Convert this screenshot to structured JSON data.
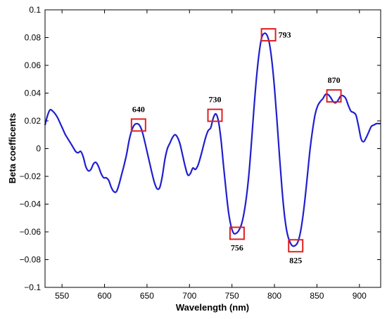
{
  "chart_data": {
    "type": "line",
    "title": "",
    "xlabel": "Wavelength (nm)",
    "ylabel": "Beta coefficents",
    "xlim": [
      530,
      925
    ],
    "ylim": [
      -0.1,
      0.1
    ],
    "xticks": [
      "550",
      "600",
      "650",
      "700",
      "750",
      "800",
      "850",
      "900"
    ],
    "yticks": [
      "0.1",
      "0.08",
      "0.06",
      "0.04",
      "0.02",
      "0",
      "−0.02",
      "−0.04",
      "−0.06",
      "−0.08",
      "−0.1"
    ],
    "grid": false,
    "line_color": "#1f1fcf",
    "marker_color": "#e02020",
    "series": [
      {
        "x": [
          530,
          533,
          536,
          539,
          542,
          545,
          548,
          551,
          554,
          557,
          560,
          563,
          566,
          569,
          572,
          575,
          578,
          581,
          584,
          587,
          590,
          593,
          596,
          599,
          602,
          605,
          608,
          611,
          614,
          617,
          620,
          623,
          626,
          629,
          632,
          635,
          638,
          641,
          644,
          647,
          650,
          653,
          656,
          659,
          662,
          665,
          668,
          671,
          674,
          677,
          680,
          683,
          686,
          689,
          692,
          695,
          698,
          701,
          704,
          707,
          710,
          713,
          716,
          719,
          722,
          725,
          728,
          731,
          734,
          737,
          740,
          743,
          746,
          749,
          752,
          755,
          758,
          761,
          764,
          767,
          770,
          773,
          776,
          779,
          782,
          785,
          788,
          791,
          794,
          797,
          800,
          803,
          806,
          809,
          812,
          815,
          818,
          821,
          824,
          827,
          830,
          833,
          836,
          839,
          842,
          845,
          848,
          851,
          854,
          857,
          860,
          863,
          866,
          869,
          872,
          875,
          878,
          881,
          884,
          887,
          890,
          893,
          896,
          899,
          902,
          905,
          908,
          911,
          914,
          917,
          920,
          923,
          925
        ],
        "y": [
          0.017,
          0.024,
          0.028,
          0.027,
          0.025,
          0.022,
          0.018,
          0.014,
          0.01,
          0.007,
          0.004,
          0.001,
          -0.002,
          -0.003,
          -0.002,
          -0.006,
          -0.013,
          -0.016,
          -0.015,
          -0.011,
          -0.01,
          -0.013,
          -0.018,
          -0.021,
          -0.021,
          -0.023,
          -0.028,
          -0.031,
          -0.031,
          -0.026,
          -0.019,
          -0.012,
          -0.004,
          0.006,
          0.013,
          0.017,
          0.018,
          0.017,
          0.013,
          0.006,
          -0.002,
          -0.01,
          -0.018,
          -0.025,
          -0.029,
          -0.028,
          -0.02,
          -0.008,
          0.0,
          0.004,
          0.008,
          0.01,
          0.008,
          0.003,
          -0.005,
          -0.013,
          -0.019,
          -0.018,
          -0.014,
          -0.015,
          -0.012,
          -0.006,
          0.001,
          0.008,
          0.013,
          0.015,
          0.022,
          0.025,
          0.02,
          0.007,
          -0.012,
          -0.03,
          -0.046,
          -0.056,
          -0.061,
          -0.061,
          -0.059,
          -0.055,
          -0.047,
          -0.035,
          -0.018,
          0.005,
          0.03,
          0.052,
          0.069,
          0.08,
          0.083,
          0.082,
          0.076,
          0.063,
          0.044,
          0.02,
          -0.006,
          -0.03,
          -0.049,
          -0.061,
          -0.067,
          -0.07,
          -0.07,
          -0.068,
          -0.062,
          -0.051,
          -0.036,
          -0.018,
          0.0,
          0.014,
          0.025,
          0.031,
          0.034,
          0.036,
          0.039,
          0.039,
          0.037,
          0.034,
          0.033,
          0.035,
          0.038,
          0.038,
          0.036,
          0.031,
          0.027,
          0.026,
          0.024,
          0.016,
          0.007,
          0.005,
          0.008,
          0.012,
          0.016,
          0.017,
          0.018,
          0.018,
          0.018
        ]
      }
    ],
    "annotations": [
      {
        "label": "640",
        "x": 640,
        "y": 0.017,
        "label_pos": "above"
      },
      {
        "label": "730",
        "x": 730,
        "y": 0.024,
        "label_pos": "above"
      },
      {
        "label": "756",
        "x": 756,
        "y": -0.061,
        "label_pos": "below"
      },
      {
        "label": "793",
        "x": 793,
        "y": 0.082,
        "label_pos": "right"
      },
      {
        "label": "825",
        "x": 825,
        "y": -0.07,
        "label_pos": "below"
      },
      {
        "label": "870",
        "x": 870,
        "y": 0.038,
        "label_pos": "above"
      }
    ]
  }
}
